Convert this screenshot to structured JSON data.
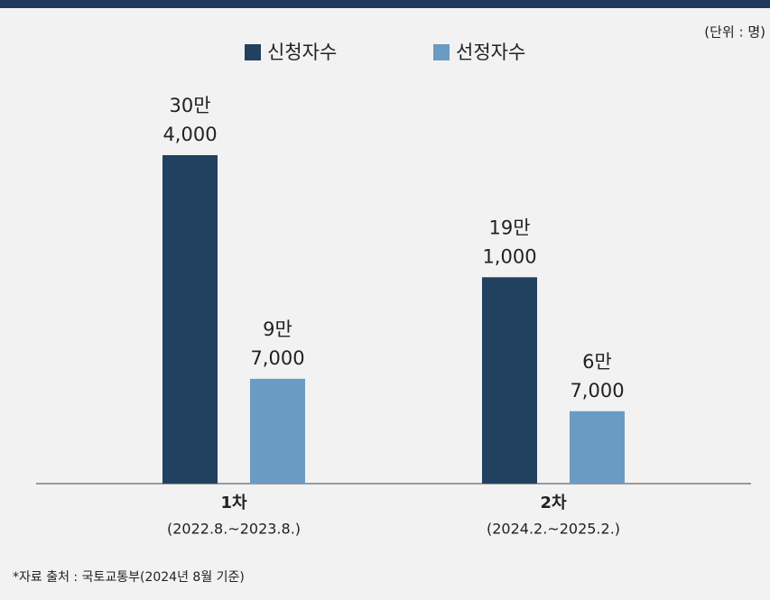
{
  "chart_data": {
    "type": "bar",
    "unit_note": "(단위 : 명)",
    "categories": [
      "1차",
      "2차"
    ],
    "category_periods": [
      "(2022.8.~2023.8.)",
      "(2024.2.~2025.2.)"
    ],
    "series": [
      {
        "name": "신청자수",
        "color": "#22405f",
        "values": [
          304000,
          191000
        ],
        "value_labels": [
          [
            "30만",
            "4,000"
          ],
          [
            "19만",
            "1,000"
          ]
        ]
      },
      {
        "name": "선정자수",
        "color": "#6a9bc3",
        "values": [
          97000,
          67000
        ],
        "value_labels": [
          [
            "9만",
            "7,000"
          ],
          [
            "6만",
            "7,000"
          ]
        ]
      }
    ],
    "ylim": [
      0,
      400000
    ],
    "legend": "top",
    "source": "*자료 출처 : 국토교통부(2024년 8월 기준)"
  }
}
